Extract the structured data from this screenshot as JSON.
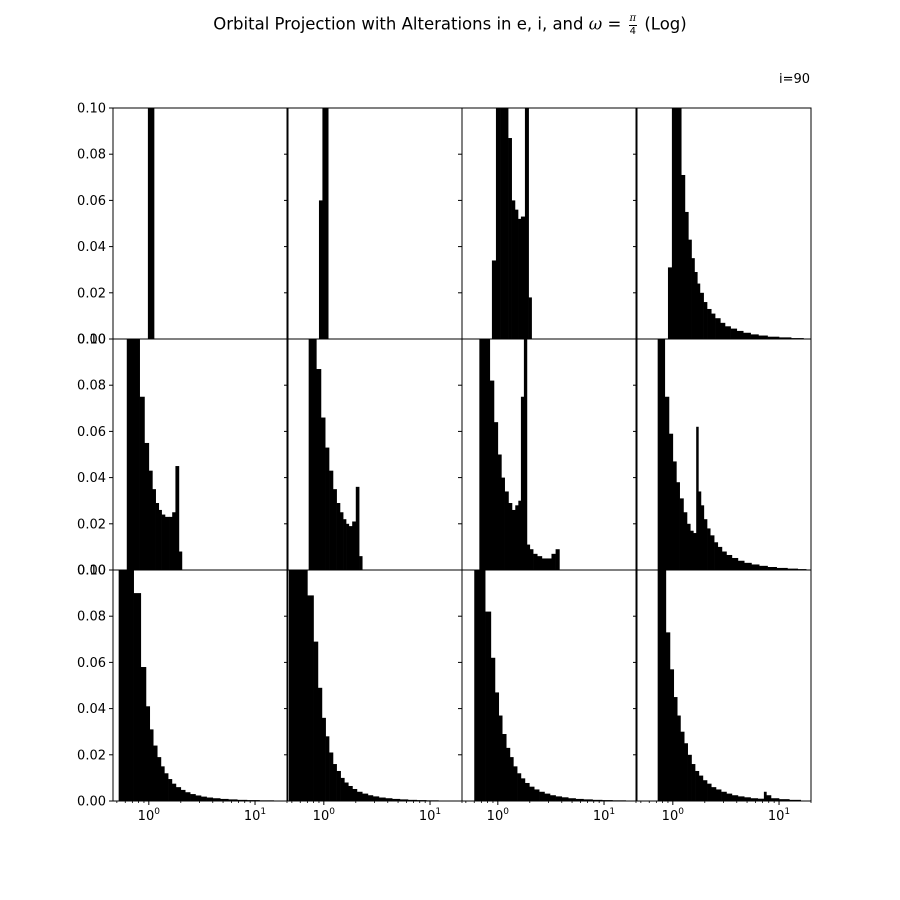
{
  "title": {
    "prefix": "Orbital Projection with Alterations in e, i, and ",
    "symbol": "ω",
    "equals": "=",
    "frac_num": "π",
    "frac_den": "4",
    "suffix": "(Log)"
  },
  "corner_label": "i=90",
  "chart_data": {
    "type": "histogram",
    "layout": "3x4 grid of subplots sharing axes",
    "xscale": "log",
    "xlim": [
      0.46,
      20
    ],
    "ylim": [
      0,
      0.1
    ],
    "y_ticks": [
      0,
      0.02,
      0.04,
      0.06,
      0.08,
      0.1
    ],
    "y_tick_labels": [
      "0.00",
      "0.02",
      "0.04",
      "0.06",
      "0.08",
      "0.10"
    ],
    "x_ticks": [
      1,
      10
    ],
    "x_tick_labels": [
      [
        "10",
        "0"
      ],
      [
        "10",
        "1"
      ]
    ],
    "bar_color": "#000000",
    "panels": [
      {
        "row": 0,
        "col": 0,
        "bins": [
          [
            0.98,
            1.12,
            0.1
          ]
        ]
      },
      {
        "row": 0,
        "col": 1,
        "bins": [
          [
            0.9,
            0.97,
            0.06
          ],
          [
            0.97,
            1.1,
            0.1
          ]
        ]
      },
      {
        "row": 0,
        "col": 2,
        "bins": [
          [
            0.88,
            0.96,
            0.034
          ],
          [
            0.96,
            1.05,
            0.1
          ],
          [
            1.05,
            1.15,
            0.1
          ],
          [
            1.15,
            1.25,
            0.1
          ],
          [
            1.25,
            1.35,
            0.087
          ],
          [
            1.35,
            1.45,
            0.06
          ],
          [
            1.45,
            1.55,
            0.056
          ],
          [
            1.55,
            1.65,
            0.052
          ],
          [
            1.65,
            1.8,
            0.053
          ],
          [
            1.8,
            1.95,
            0.1
          ],
          [
            1.95,
            2.08,
            0.018
          ]
        ]
      },
      {
        "row": 0,
        "col": 3,
        "bins": [
          [
            0.9,
            0.98,
            0.031
          ],
          [
            0.98,
            1.2,
            0.1
          ],
          [
            1.2,
            1.3,
            0.071
          ],
          [
            1.3,
            1.4,
            0.055
          ],
          [
            1.4,
            1.5,
            0.043
          ],
          [
            1.5,
            1.6,
            0.035
          ],
          [
            1.6,
            1.7,
            0.029
          ],
          [
            1.7,
            1.8,
            0.024
          ],
          [
            1.8,
            1.95,
            0.02
          ],
          [
            1.95,
            2.1,
            0.016
          ],
          [
            2.1,
            2.3,
            0.013
          ],
          [
            2.3,
            2.5,
            0.011
          ],
          [
            2.5,
            2.8,
            0.009
          ],
          [
            2.8,
            3.1,
            0.007
          ],
          [
            3.1,
            3.5,
            0.0055
          ],
          [
            3.5,
            4,
            0.0045
          ],
          [
            4,
            4.6,
            0.0035
          ],
          [
            4.6,
            5.4,
            0.0027
          ],
          [
            5.4,
            6.4,
            0.002
          ],
          [
            6.4,
            7.8,
            0.0015
          ],
          [
            7.8,
            10,
            0.001
          ],
          [
            10,
            13,
            0.0007
          ],
          [
            13,
            17,
            0.0004
          ]
        ]
      },
      {
        "row": 1,
        "col": 0,
        "bins": [
          [
            0.62,
            0.82,
            0.1
          ],
          [
            0.82,
            0.91,
            0.075
          ],
          [
            0.91,
            1.0,
            0.055
          ],
          [
            1.0,
            1.08,
            0.043
          ],
          [
            1.08,
            1.16,
            0.035
          ],
          [
            1.16,
            1.24,
            0.029
          ],
          [
            1.24,
            1.32,
            0.026
          ],
          [
            1.32,
            1.42,
            0.024
          ],
          [
            1.42,
            1.55,
            0.023
          ],
          [
            1.55,
            1.66,
            0.023
          ],
          [
            1.66,
            1.78,
            0.025
          ],
          [
            1.78,
            1.92,
            0.045
          ],
          [
            1.92,
            2.05,
            0.008
          ]
        ]
      },
      {
        "row": 1,
        "col": 1,
        "bins": [
          [
            0.72,
            0.85,
            0.1
          ],
          [
            0.85,
            0.94,
            0.087
          ],
          [
            0.94,
            1.03,
            0.066
          ],
          [
            1.03,
            1.12,
            0.053
          ],
          [
            1.12,
            1.22,
            0.043
          ],
          [
            1.22,
            1.32,
            0.035
          ],
          [
            1.32,
            1.42,
            0.029
          ],
          [
            1.42,
            1.52,
            0.025
          ],
          [
            1.52,
            1.62,
            0.022
          ],
          [
            1.62,
            1.72,
            0.02
          ],
          [
            1.72,
            1.85,
            0.019
          ],
          [
            1.85,
            2.0,
            0.021
          ],
          [
            2.0,
            2.15,
            0.036
          ],
          [
            2.15,
            2.3,
            0.006
          ]
        ]
      },
      {
        "row": 1,
        "col": 2,
        "bins": [
          [
            0.67,
            0.84,
            0.1
          ],
          [
            0.84,
            0.92,
            0.082
          ],
          [
            0.92,
            1.0,
            0.064
          ],
          [
            1.0,
            1.08,
            0.05
          ],
          [
            1.08,
            1.16,
            0.04
          ],
          [
            1.16,
            1.26,
            0.034
          ],
          [
            1.26,
            1.36,
            0.029
          ],
          [
            1.36,
            1.46,
            0.026
          ],
          [
            1.46,
            1.56,
            0.028
          ],
          [
            1.56,
            1.65,
            0.03
          ],
          [
            1.65,
            1.76,
            0.075
          ],
          [
            1.76,
            1.88,
            0.1
          ],
          [
            1.88,
            2.0,
            0.011
          ],
          [
            2.0,
            2.15,
            0.009
          ],
          [
            2.15,
            2.35,
            0.007
          ],
          [
            2.35,
            2.6,
            0.006
          ],
          [
            2.6,
            2.9,
            0.005
          ],
          [
            2.9,
            3.2,
            0.005
          ],
          [
            3.2,
            3.5,
            0.007
          ],
          [
            3.5,
            3.8,
            0.009
          ]
        ]
      },
      {
        "row": 1,
        "col": 3,
        "bins": [
          [
            0.72,
            0.84,
            0.1
          ],
          [
            0.84,
            0.92,
            0.075
          ],
          [
            0.92,
            1.0,
            0.059
          ],
          [
            1.0,
            1.08,
            0.047
          ],
          [
            1.08,
            1.16,
            0.038
          ],
          [
            1.16,
            1.26,
            0.031
          ],
          [
            1.26,
            1.36,
            0.025
          ],
          [
            1.36,
            1.46,
            0.02
          ],
          [
            1.46,
            1.56,
            0.017
          ],
          [
            1.56,
            1.66,
            0.016
          ],
          [
            1.66,
            1.74,
            0.062
          ],
          [
            1.74,
            1.84,
            0.034
          ],
          [
            1.84,
            1.96,
            0.028
          ],
          [
            1.96,
            2.1,
            0.022
          ],
          [
            2.1,
            2.25,
            0.018
          ],
          [
            2.25,
            2.45,
            0.015
          ],
          [
            2.45,
            2.65,
            0.012
          ],
          [
            2.65,
            2.9,
            0.01
          ],
          [
            2.9,
            3.2,
            0.008
          ],
          [
            3.2,
            3.6,
            0.0065
          ],
          [
            3.6,
            4.1,
            0.0052
          ],
          [
            4.1,
            4.7,
            0.004
          ],
          [
            4.7,
            5.5,
            0.0031
          ],
          [
            5.5,
            6.5,
            0.0024
          ],
          [
            6.5,
            7.8,
            0.0018
          ],
          [
            7.8,
            9.5,
            0.0013
          ],
          [
            9.5,
            12,
            0.0009
          ],
          [
            12,
            15,
            0.0006
          ],
          [
            15,
            18,
            0.0004
          ]
        ]
      },
      {
        "row": 2,
        "col": 0,
        "bins": [
          [
            0.52,
            0.72,
            0.1
          ],
          [
            0.72,
            0.84,
            0.09
          ],
          [
            0.84,
            0.94,
            0.058
          ],
          [
            0.94,
            1.02,
            0.041
          ],
          [
            1.02,
            1.1,
            0.031
          ],
          [
            1.1,
            1.2,
            0.024
          ],
          [
            1.2,
            1.3,
            0.019
          ],
          [
            1.3,
            1.4,
            0.015
          ],
          [
            1.4,
            1.52,
            0.012
          ],
          [
            1.52,
            1.65,
            0.0095
          ],
          [
            1.65,
            1.8,
            0.0075
          ],
          [
            1.8,
            2.0,
            0.006
          ],
          [
            2.0,
            2.2,
            0.0048
          ],
          [
            2.2,
            2.45,
            0.0038
          ],
          [
            2.45,
            2.75,
            0.003
          ],
          [
            2.75,
            3.1,
            0.0024
          ],
          [
            3.1,
            3.5,
            0.0019
          ],
          [
            3.5,
            4.0,
            0.0015
          ],
          [
            4.0,
            4.7,
            0.0012
          ],
          [
            4.7,
            5.6,
            0.0009
          ],
          [
            5.6,
            6.8,
            0.0007
          ],
          [
            6.8,
            8.4,
            0.0005
          ],
          [
            8.4,
            11,
            0.0004
          ],
          [
            11,
            15,
            0.0003
          ]
        ]
      },
      {
        "row": 2,
        "col": 1,
        "bins": [
          [
            0.47,
            0.6,
            0.1
          ],
          [
            0.6,
            0.7,
            0.1
          ],
          [
            0.7,
            0.8,
            0.089
          ],
          [
            0.8,
            0.88,
            0.069
          ],
          [
            0.88,
            0.96,
            0.049
          ],
          [
            0.96,
            1.04,
            0.036
          ],
          [
            1.04,
            1.12,
            0.028
          ],
          [
            1.12,
            1.22,
            0.021
          ],
          [
            1.22,
            1.32,
            0.016
          ],
          [
            1.32,
            1.44,
            0.013
          ],
          [
            1.44,
            1.56,
            0.01
          ],
          [
            1.56,
            1.7,
            0.008
          ],
          [
            1.7,
            1.86,
            0.0065
          ],
          [
            1.86,
            2.05,
            0.0052
          ],
          [
            2.05,
            2.3,
            0.004
          ],
          [
            2.3,
            2.6,
            0.0032
          ],
          [
            2.6,
            2.9,
            0.0025
          ],
          [
            2.9,
            3.3,
            0.002
          ],
          [
            3.3,
            3.8,
            0.0015
          ],
          [
            3.8,
            4.4,
            0.0012
          ],
          [
            4.4,
            5.2,
            0.0009
          ],
          [
            5.2,
            6.2,
            0.0007
          ],
          [
            6.2,
            7.5,
            0.0005
          ],
          [
            7.5,
            9.2,
            0.0004
          ],
          [
            9.2,
            12,
            0.0003
          ]
        ]
      },
      {
        "row": 2,
        "col": 2,
        "bins": [
          [
            0.6,
            0.76,
            0.1
          ],
          [
            0.76,
            0.86,
            0.082
          ],
          [
            0.86,
            0.94,
            0.062
          ],
          [
            0.94,
            1.02,
            0.047
          ],
          [
            1.02,
            1.1,
            0.037
          ],
          [
            1.1,
            1.2,
            0.029
          ],
          [
            1.2,
            1.3,
            0.023
          ],
          [
            1.3,
            1.4,
            0.019
          ],
          [
            1.4,
            1.52,
            0.015
          ],
          [
            1.52,
            1.65,
            0.012
          ],
          [
            1.65,
            1.8,
            0.0098
          ],
          [
            1.8,
            1.98,
            0.0078
          ],
          [
            1.98,
            2.2,
            0.0062
          ],
          [
            2.2,
            2.45,
            0.005
          ],
          [
            2.45,
            2.75,
            0.004
          ],
          [
            2.75,
            3.1,
            0.0032
          ],
          [
            3.1,
            3.5,
            0.0025
          ],
          [
            3.5,
            4.0,
            0.002
          ],
          [
            4.0,
            4.6,
            0.0016
          ],
          [
            4.6,
            5.4,
            0.0012
          ],
          [
            5.4,
            6.4,
            0.0009
          ],
          [
            6.4,
            7.8,
            0.0007
          ],
          [
            7.8,
            9.6,
            0.0005
          ],
          [
            9.6,
            12,
            0.0004
          ],
          [
            12,
            16,
            0.0003
          ],
          [
            16,
            20,
            0.0002
          ]
        ]
      },
      {
        "row": 2,
        "col": 3,
        "bins": [
          [
            0.72,
            0.86,
            0.1
          ],
          [
            0.86,
            0.94,
            0.073
          ],
          [
            0.94,
            1.02,
            0.057
          ],
          [
            1.02,
            1.1,
            0.045
          ],
          [
            1.1,
            1.18,
            0.037
          ],
          [
            1.18,
            1.28,
            0.03
          ],
          [
            1.28,
            1.38,
            0.025
          ],
          [
            1.38,
            1.5,
            0.02
          ],
          [
            1.5,
            1.62,
            0.016
          ],
          [
            1.62,
            1.76,
            0.013
          ],
          [
            1.76,
            1.92,
            0.011
          ],
          [
            1.92,
            2.1,
            0.009
          ],
          [
            2.1,
            2.3,
            0.0075
          ],
          [
            2.3,
            2.55,
            0.006
          ],
          [
            2.55,
            2.85,
            0.005
          ],
          [
            2.85,
            3.2,
            0.004
          ],
          [
            3.2,
            3.6,
            0.0032
          ],
          [
            3.6,
            4.1,
            0.0025
          ],
          [
            4.1,
            4.7,
            0.002
          ],
          [
            4.7,
            5.4,
            0.0016
          ],
          [
            5.4,
            6.3,
            0.0012
          ],
          [
            6.3,
            7.2,
            0.001
          ],
          [
            7.2,
            7.6,
            0.004
          ],
          [
            7.6,
            8.4,
            0.0025
          ],
          [
            8.4,
            10,
            0.0012
          ],
          [
            10,
            12.5,
            0.0008
          ],
          [
            12.5,
            16,
            0.0005
          ]
        ]
      }
    ]
  }
}
